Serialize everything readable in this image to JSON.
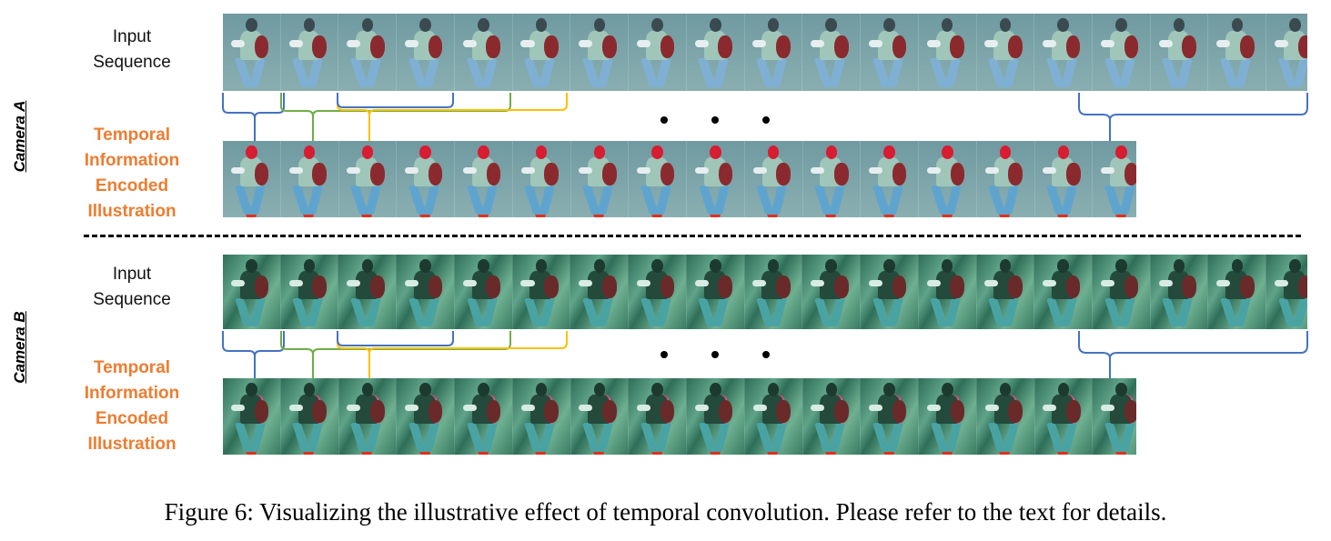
{
  "camera_a": {
    "label": "Camera A",
    "input_label_line1": "Input",
    "input_label_line2": "Sequence",
    "encoded_label_line1": "Temporal",
    "encoded_label_line2": "Information",
    "encoded_label_line3": "Encoded",
    "encoded_label_line4": "Illustration",
    "input_frame_count": 19,
    "encoded_frame_count": 16
  },
  "camera_b": {
    "label": "Camera B",
    "input_label_line1": "Input",
    "input_label_line2": "Sequence",
    "encoded_label_line1": "Temporal",
    "encoded_label_line2": "Information",
    "encoded_label_line3": "Encoded",
    "encoded_label_line4": "Illustration",
    "input_frame_count": 19,
    "encoded_frame_count": 16
  },
  "colors": {
    "accent_label": "#ed7d31",
    "brace_blue": "#4472c4",
    "brace_green": "#70ad47",
    "brace_yellow": "#ffc000"
  },
  "caption": "Figure 6: Visualizing the illustrative effect of temporal convolution. Please refer to the text for details."
}
